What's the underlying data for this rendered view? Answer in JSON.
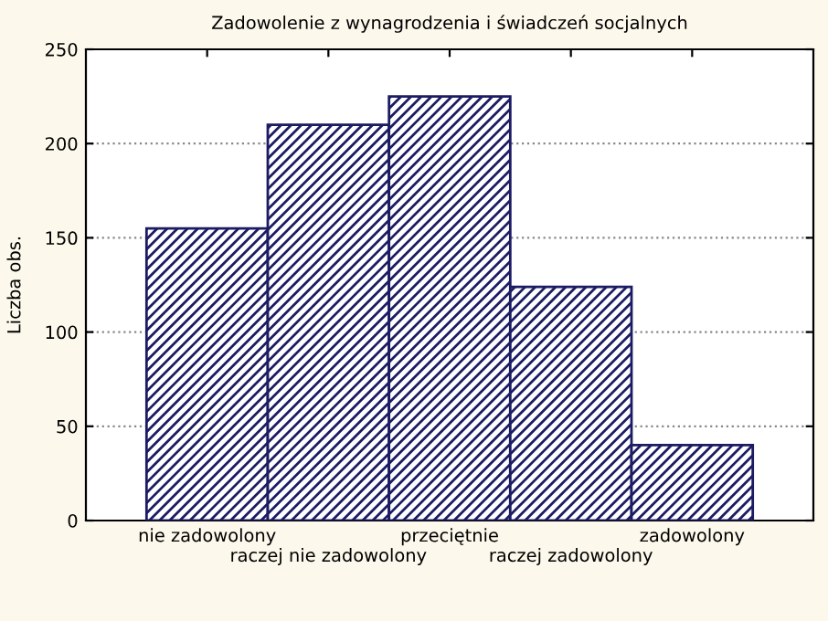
{
  "chart_data": {
    "type": "bar",
    "title": "Zadowolenie z wynagrodzenia i świadczeń socjalnych",
    "ylabel": "Liczba obs.",
    "categories": [
      "nie zadowolony",
      "raczej nie zadowolony",
      "przeciętnie",
      "raczej zadowolony",
      "zadowolony"
    ],
    "values": [
      155,
      210,
      225,
      124,
      40
    ],
    "color": "#1c1c64",
    "ylim": [
      0,
      250
    ],
    "yticks": [
      0,
      50,
      100,
      150,
      200,
      250
    ],
    "grid": "y"
  }
}
